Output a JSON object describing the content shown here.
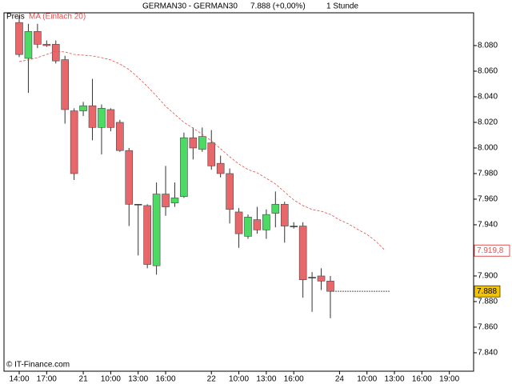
{
  "chart_data": {
    "type": "candlestick",
    "title": "GERMAN30 - GERMAN30",
    "quote": "7.888 (+0,00%)",
    "period": "1 Stunde",
    "price_name": "Preis",
    "watermark": "© IT-Finance.com",
    "categories": [
      "14:00",
      null,
      null,
      "17:00",
      null,
      null,
      null,
      "21",
      null,
      null,
      "10:00",
      null,
      null,
      "13:00",
      null,
      null,
      "16:00",
      null,
      null,
      null,
      null,
      "22",
      null,
      null,
      "10:00",
      null,
      null,
      "13:00",
      null,
      null,
      "16:00",
      null,
      null,
      null,
      null,
      "24",
      null,
      null,
      "10:00",
      null,
      null,
      "13:00",
      null,
      null,
      "16:00",
      null,
      null,
      "19:00",
      null
    ],
    "open": [
      8.098,
      8.07,
      8.091,
      8.081,
      8.081,
      8.069,
      8.029,
      8.029,
      8.033,
      8.016,
      8.03,
      8.02,
      7.998,
      7.956,
      7.955,
      7.908,
      7.964,
      7.957,
      7.962,
      8.008,
      7.999,
      8.004,
      7.988,
      7.98,
      7.95,
      7.931,
      7.944,
      7.936,
      7.949,
      7.956,
      7.939,
      7.939,
      7.899,
      7.9,
      7.896,
      null,
      null,
      null,
      null,
      null,
      null,
      null,
      null,
      null,
      null,
      null,
      null,
      null,
      null
    ],
    "high": [
      8.103,
      8.097,
      8.097,
      8.084,
      8.084,
      8.072,
      8.031,
      8.036,
      8.054,
      8.034,
      8.031,
      8.022,
      8.0,
      7.956,
      7.956,
      7.973,
      7.986,
      7.973,
      8.012,
      8.016,
      8.016,
      8.014,
      7.994,
      7.984,
      7.953,
      7.948,
      7.954,
      7.952,
      7.966,
      7.958,
      7.942,
      7.942,
      7.903,
      7.906,
      7.9,
      null,
      null,
      null,
      null,
      null,
      null,
      null,
      null,
      null,
      null,
      null,
      null,
      null,
      null
    ],
    "low": [
      8.071,
      8.043,
      8.078,
      8.079,
      8.066,
      8.019,
      7.975,
      8.025,
      8.006,
      7.995,
      8.013,
      7.997,
      7.939,
      7.916,
      7.906,
      7.901,
      7.947,
      7.954,
      7.961,
      7.991,
      7.997,
      7.983,
      7.977,
      7.941,
      7.922,
      7.929,
      7.933,
      7.929,
      7.938,
      7.926,
      7.937,
      7.883,
      7.872,
      7.889,
      7.867,
      null,
      null,
      null,
      null,
      null,
      null,
      null,
      null,
      null,
      null,
      null,
      null,
      null,
      null
    ],
    "close": [
      8.073,
      8.091,
      8.081,
      8.08,
      8.068,
      8.03,
      7.98,
      8.033,
      8.016,
      8.031,
      8.016,
      7.998,
      7.956,
      7.956,
      7.909,
      7.964,
      7.954,
      7.961,
      8.008,
      8.0,
      8.009,
      7.986,
      7.98,
      7.952,
      7.933,
      7.946,
      7.936,
      7.948,
      7.956,
      7.939,
      7.939,
      7.897,
      7.899,
      7.896,
      7.888,
      null,
      null,
      null,
      null,
      null,
      null,
      null,
      null,
      null,
      null,
      null,
      null,
      null,
      null
    ],
    "up_color": "#4cd964",
    "down_color": "#e8676b",
    "last_price": 7.888,
    "last_price_color": "#f5c400",
    "ma": {
      "name": "MA (Einfach 20)",
      "color": "#e05050",
      "values": [
        8.0675,
        8.0688,
        8.0706,
        8.0731,
        8.0756,
        8.075,
        8.0731,
        8.0725,
        8.0719,
        8.0706,
        8.0688,
        8.0656,
        8.0613,
        8.055,
        8.0481,
        8.0406,
        8.0325,
        8.0263,
        8.02,
        8.0156,
        8.0106,
        8.0056,
        7.9994,
        7.9931,
        7.9875,
        7.9831,
        7.9806,
        7.9763,
        7.9719,
        7.9656,
        7.9594,
        7.955,
        7.9519,
        7.9506,
        7.9481,
        7.9438,
        7.9406,
        7.9363,
        7.9325,
        7.9269,
        7.9198,
        null,
        null,
        null,
        null,
        null,
        null,
        null,
        null
      ],
      "value_labels": [
        null,
        null,
        null,
        null,
        null,
        null,
        null,
        null,
        null,
        null,
        null,
        null,
        null,
        null,
        null,
        null,
        null,
        null,
        null,
        null,
        null,
        null,
        null,
        null,
        null,
        null,
        null,
        null,
        null,
        null,
        null,
        null,
        null,
        null,
        null,
        null,
        null,
        null,
        null,
        null,
        "7.919,8",
        null,
        null,
        null,
        null,
        null,
        null,
        null,
        null
      ]
    },
    "ylim": [
      7.8256,
      8.1056
    ],
    "yticks": [
      {
        "value": 7.84,
        "label": "7.840"
      },
      {
        "value": 7.86,
        "label": "7.860"
      },
      {
        "value": 7.88,
        "label": "7.880"
      },
      {
        "value": 7.9,
        "label": "7.900"
      },
      {
        "value": 7.94,
        "label": "7.940"
      },
      {
        "value": 7.96,
        "label": "7.960"
      },
      {
        "value": 7.98,
        "label": "7.980"
      },
      {
        "value": 8.0,
        "label": "8.000"
      },
      {
        "value": 8.02,
        "label": "8.020"
      },
      {
        "value": 8.04,
        "label": "8.040"
      },
      {
        "value": 8.06,
        "label": "8.060"
      },
      {
        "value": 8.08,
        "label": "8.080"
      }
    ]
  }
}
